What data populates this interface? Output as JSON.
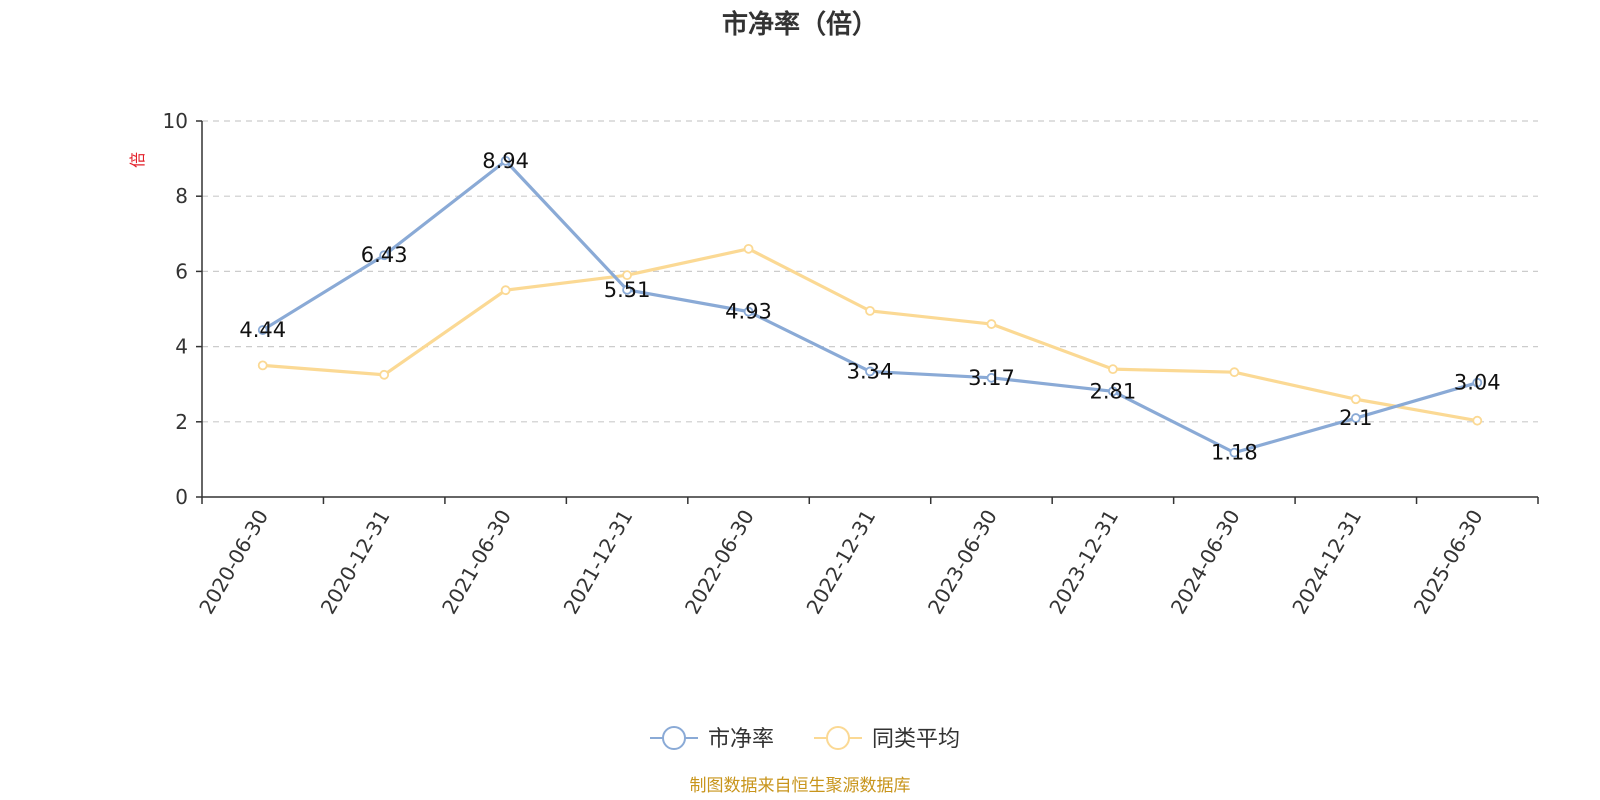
{
  "chart_data": {
    "type": "line",
    "title": "市净率（倍）",
    "ylabel": "倍",
    "ylim": [
      0,
      10
    ],
    "yticks": [
      0,
      2,
      4,
      6,
      8,
      10
    ],
    "grid": true,
    "legend_position": "bottom",
    "categories": [
      "2020-06-30",
      "2020-12-31",
      "2021-06-30",
      "2021-12-31",
      "2022-06-30",
      "2022-12-31",
      "2023-06-30",
      "2023-12-31",
      "2024-06-30",
      "2024-12-31",
      "2025-06-30"
    ],
    "series": [
      {
        "name": "市净率",
        "color": "#8aaad6",
        "values": [
          4.44,
          6.43,
          8.94,
          5.51,
          4.93,
          3.34,
          3.17,
          2.81,
          1.18,
          2.1,
          3.04
        ],
        "labels": [
          "4.44",
          "6.43",
          "8.94",
          "5.51",
          "4.93",
          "3.34",
          "3.17",
          "2.81",
          "1.18",
          "2.1",
          "3.04"
        ]
      },
      {
        "name": "同类平均",
        "color": "#fbd994",
        "values": [
          3.5,
          3.25,
          5.5,
          5.9,
          6.6,
          4.95,
          4.6,
          3.4,
          3.32,
          2.6,
          2.03
        ]
      }
    ]
  },
  "source": "制图数据来自恒生聚源数据库"
}
